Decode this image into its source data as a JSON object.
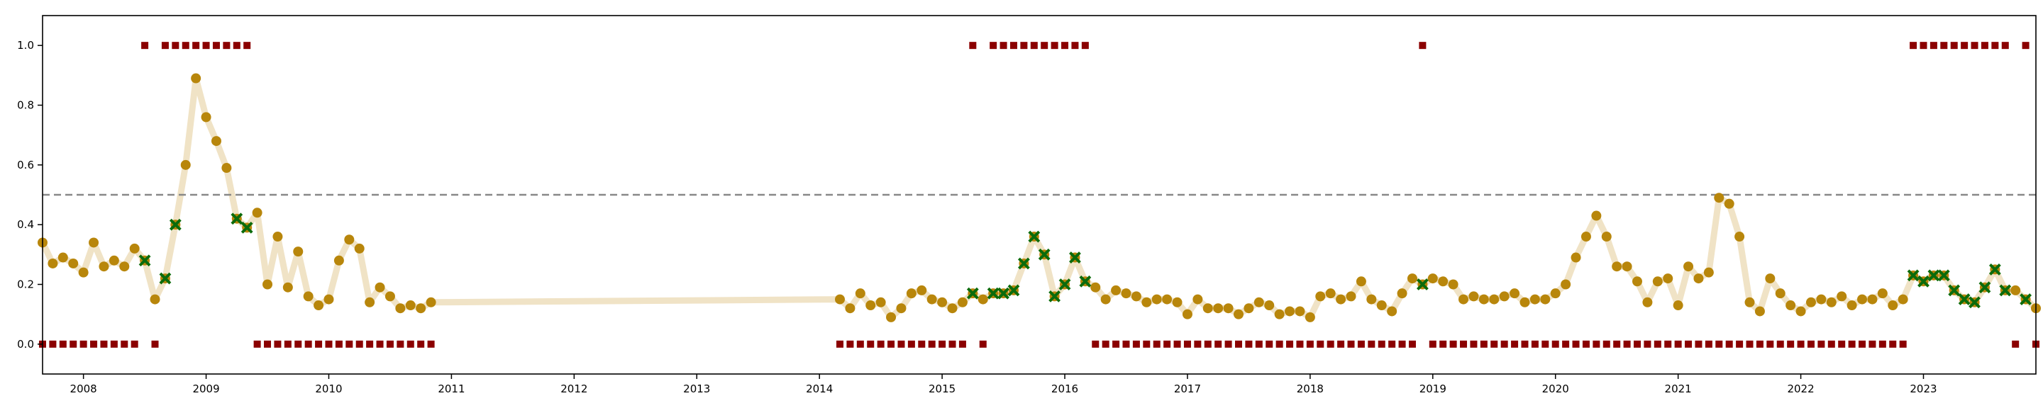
{
  "chart_data": {
    "type": "scatter",
    "title": "",
    "xlabel": "",
    "ylabel": "",
    "x_range": [
      "2007-09",
      "2023-12"
    ],
    "ylim": [
      -0.1,
      1.1
    ],
    "x_ticks": [
      "2008",
      "2009",
      "2010",
      "2011",
      "2012",
      "2013",
      "2014",
      "2015",
      "2016",
      "2017",
      "2018",
      "2019",
      "2020",
      "2021",
      "2022",
      "2023"
    ],
    "y_ticks": [
      "0.0",
      "0.2",
      "0.4",
      "0.6",
      "0.8",
      "1.0"
    ],
    "y_tick_values": [
      0,
      0.2,
      0.4,
      0.6,
      0.8,
      1.0
    ],
    "grid": false,
    "legend": "none",
    "threshold": 0.5,
    "colors": {
      "line": "#f0e3c6",
      "point": "#b8860b",
      "flagged": "#0b6b0b",
      "label": "#8b0000",
      "threshold": "#888888",
      "axes": "#000000"
    },
    "x": [
      "2007-09",
      "2007-10",
      "2007-11",
      "2007-12",
      "2008-01",
      "2008-02",
      "2008-03",
      "2008-04",
      "2008-05",
      "2008-06",
      "2008-07",
      "2008-08",
      "2008-09",
      "2008-10",
      "2008-11",
      "2008-12",
      "2009-01",
      "2009-02",
      "2009-03",
      "2009-04",
      "2009-05",
      "2009-06",
      "2009-07",
      "2009-08",
      "2009-09",
      "2009-10",
      "2009-11",
      "2009-12",
      "2010-01",
      "2010-02",
      "2010-03",
      "2010-04",
      "2010-05",
      "2010-06",
      "2010-07",
      "2010-08",
      "2010-09",
      "2010-10",
      "2010-11",
      "2014-03",
      "2014-04",
      "2014-05",
      "2014-06",
      "2014-07",
      "2014-08",
      "2014-09",
      "2014-10",
      "2014-11",
      "2014-12",
      "2015-01",
      "2015-02",
      "2015-03",
      "2015-04",
      "2015-05",
      "2015-06",
      "2015-07",
      "2015-08",
      "2015-09",
      "2015-10",
      "2015-11",
      "2015-12",
      "2016-01",
      "2016-02",
      "2016-03",
      "2016-04",
      "2016-05",
      "2016-06",
      "2016-07",
      "2016-08",
      "2016-09",
      "2016-10",
      "2016-11",
      "2016-12",
      "2017-01",
      "2017-02",
      "2017-03",
      "2017-04",
      "2017-05",
      "2017-06",
      "2017-07",
      "2017-08",
      "2017-09",
      "2017-10",
      "2017-11",
      "2017-12",
      "2018-01",
      "2018-02",
      "2018-03",
      "2018-04",
      "2018-05",
      "2018-06",
      "2018-07",
      "2018-08",
      "2018-09",
      "2018-10",
      "2018-11",
      "2018-12",
      "2019-01",
      "2019-02",
      "2019-03",
      "2019-04",
      "2019-05",
      "2019-06",
      "2019-07",
      "2019-08",
      "2019-09",
      "2019-10",
      "2019-11",
      "2019-12",
      "2020-01",
      "2020-02",
      "2020-03",
      "2020-04",
      "2020-05",
      "2020-06",
      "2020-07",
      "2020-08",
      "2020-09",
      "2020-10",
      "2020-11",
      "2020-12",
      "2021-01",
      "2021-02",
      "2021-03",
      "2021-04",
      "2021-05",
      "2021-06",
      "2021-07",
      "2021-08",
      "2021-09",
      "2021-10",
      "2021-11",
      "2021-12",
      "2022-01",
      "2022-02",
      "2022-03",
      "2022-04",
      "2022-05",
      "2022-06",
      "2022-07",
      "2022-08",
      "2022-09",
      "2022-10",
      "2022-11",
      "2022-12",
      "2023-01",
      "2023-02",
      "2023-03",
      "2023-04",
      "2023-05",
      "2023-06",
      "2023-07",
      "2023-08",
      "2023-09",
      "2023-10",
      "2023-11",
      "2023-12"
    ],
    "series": [
      {
        "values": [
          0.34,
          0.27,
          0.29,
          0.27,
          0.24,
          0.34,
          0.26,
          0.28,
          0.26,
          0.32,
          0.28,
          0.15,
          0.22,
          0.4,
          0.6,
          0.89,
          0.76,
          0.68,
          0.59,
          0.42,
          0.39,
          0.44,
          0.2,
          0.36,
          0.19,
          0.31,
          0.16,
          0.13,
          0.15,
          0.28,
          0.35,
          0.32,
          0.14,
          0.19,
          0.16,
          0.12,
          0.13,
          0.12,
          0.14,
          0.15,
          0.12,
          0.17,
          0.13,
          0.14,
          0.09,
          0.12,
          0.17,
          0.18,
          0.15,
          0.14,
          0.12,
          0.14,
          0.17,
          0.15,
          0.17,
          0.17,
          0.18,
          0.27,
          0.36,
          0.3,
          0.16,
          0.2,
          0.29,
          0.21,
          0.19,
          0.15,
          0.18,
          0.17,
          0.16,
          0.14,
          0.15,
          0.15,
          0.14,
          0.1,
          0.15,
          0.12,
          0.12,
          0.12,
          0.1,
          0.12,
          0.14,
          0.13,
          0.1,
          0.11,
          0.11,
          0.09,
          0.16,
          0.17,
          0.15,
          0.16,
          0.21,
          0.15,
          0.13,
          0.11,
          0.17,
          0.22,
          0.2,
          0.22,
          0.21,
          0.2,
          0.15,
          0.16,
          0.15,
          0.15,
          0.16,
          0.17,
          0.14,
          0.15,
          0.15,
          0.17,
          0.2,
          0.29,
          0.36,
          0.43,
          0.36,
          0.26,
          0.26,
          0.21,
          0.14,
          0.21,
          0.22,
          0.13,
          0.26,
          0.22,
          0.24,
          0.49,
          0.47,
          0.36,
          0.14,
          0.11,
          0.22,
          0.17,
          0.13,
          0.11,
          0.14,
          0.15,
          0.14,
          0.16,
          0.13,
          0.15,
          0.15,
          0.17,
          0.13,
          0.15,
          0.23,
          0.21,
          0.23,
          0.23,
          0.18,
          0.15,
          0.14,
          0.19,
          0.25,
          0.18,
          0.18,
          0.15,
          0.12
        ]
      }
    ],
    "flagged_x": [
      "2008-07",
      "2008-09",
      "2008-10",
      "2009-04",
      "2009-05",
      "2015-04",
      "2015-06",
      "2015-07",
      "2015-08",
      "2015-09",
      "2015-10",
      "2015-11",
      "2015-12",
      "2016-01",
      "2016-02",
      "2016-03",
      "2018-12",
      "2022-12",
      "2023-01",
      "2023-02",
      "2023-03",
      "2023-04",
      "2023-05",
      "2023-06",
      "2023-07",
      "2023-08",
      "2023-09",
      "2023-11"
    ],
    "labels_x": [
      "2007-09",
      "2007-10",
      "2007-11",
      "2007-12",
      "2008-01",
      "2008-02",
      "2008-03",
      "2008-04",
      "2008-05",
      "2008-06",
      "2008-07",
      "2008-08",
      "2008-09",
      "2008-10",
      "2008-11",
      "2008-12",
      "2009-01",
      "2009-02",
      "2009-03",
      "2009-04",
      "2009-05",
      "2009-06",
      "2009-07",
      "2009-08",
      "2009-09",
      "2009-10",
      "2009-11",
      "2009-12",
      "2010-01",
      "2010-02",
      "2010-03",
      "2010-04",
      "2010-05",
      "2010-06",
      "2010-07",
      "2010-08",
      "2010-09",
      "2010-10",
      "2010-11",
      "2014-03",
      "2014-04",
      "2014-05",
      "2014-06",
      "2014-07",
      "2014-08",
      "2014-09",
      "2014-10",
      "2014-11",
      "2014-12",
      "2015-01",
      "2015-02",
      "2015-03",
      "2015-04",
      "2015-05",
      "2015-06",
      "2015-07",
      "2015-08",
      "2015-09",
      "2015-10",
      "2015-11",
      "2015-12",
      "2016-01",
      "2016-02",
      "2016-03",
      "2016-04",
      "2016-05",
      "2016-06",
      "2016-07",
      "2016-08",
      "2016-09",
      "2016-10",
      "2016-11",
      "2016-12",
      "2017-01",
      "2017-02",
      "2017-03",
      "2017-04",
      "2017-05",
      "2017-06",
      "2017-07",
      "2017-08",
      "2017-09",
      "2017-10",
      "2017-11",
      "2017-12",
      "2018-01",
      "2018-02",
      "2018-03",
      "2018-04",
      "2018-05",
      "2018-06",
      "2018-07",
      "2018-08",
      "2018-09",
      "2018-10",
      "2018-11",
      "2018-12",
      "2019-01",
      "2019-02",
      "2019-03",
      "2019-04",
      "2019-05",
      "2019-06",
      "2019-07",
      "2019-08",
      "2019-09",
      "2019-10",
      "2019-11",
      "2019-12",
      "2020-01",
      "2020-02",
      "2020-03",
      "2020-04",
      "2020-05",
      "2020-06",
      "2020-07",
      "2020-08",
      "2020-09",
      "2020-10",
      "2020-11",
      "2020-12",
      "2021-01",
      "2021-02",
      "2021-03",
      "2021-04",
      "2021-05",
      "2021-06",
      "2021-07",
      "2021-08",
      "2021-09",
      "2021-10",
      "2021-11",
      "2021-12",
      "2022-01",
      "2022-02",
      "2022-03",
      "2022-04",
      "2022-05",
      "2022-06",
      "2022-07",
      "2022-08",
      "2022-09",
      "2022-10",
      "2022-11",
      "2022-12",
      "2023-01",
      "2023-02",
      "2023-03",
      "2023-04",
      "2023-05",
      "2023-06",
      "2023-07",
      "2023-08",
      "2023-09",
      "2023-10",
      "2023-11",
      "2023-12"
    ],
    "labels": [
      0,
      0,
      0,
      0,
      0,
      0,
      0,
      0,
      0,
      0,
      1,
      0,
      1,
      1,
      1,
      1,
      1,
      1,
      1,
      1,
      1,
      0,
      0,
      0,
      0,
      0,
      0,
      0,
      0,
      0,
      0,
      0,
      0,
      0,
      0,
      0,
      0,
      0,
      0,
      0,
      0,
      0,
      0,
      0,
      0,
      0,
      0,
      0,
      0,
      0,
      0,
      0,
      1,
      0,
      1,
      1,
      1,
      1,
      1,
      1,
      1,
      1,
      1,
      1,
      0,
      0,
      0,
      0,
      0,
      0,
      0,
      0,
      0,
      0,
      0,
      0,
      0,
      0,
      0,
      0,
      0,
      0,
      0,
      0,
      0,
      0,
      0,
      0,
      0,
      0,
      0,
      0,
      0,
      0,
      0,
      0,
      1,
      0,
      0,
      0,
      0,
      0,
      0,
      0,
      0,
      0,
      0,
      0,
      0,
      0,
      0,
      0,
      0,
      0,
      0,
      0,
      0,
      0,
      0,
      0,
      0,
      0,
      0,
      0,
      0,
      0,
      0,
      0,
      0,
      0,
      0,
      0,
      0,
      0,
      0,
      0,
      0,
      0,
      0,
      0,
      0,
      0,
      0,
      0,
      1,
      1,
      1,
      1,
      1,
      1,
      1,
      1,
      1,
      1,
      0,
      1,
      0
    ]
  }
}
